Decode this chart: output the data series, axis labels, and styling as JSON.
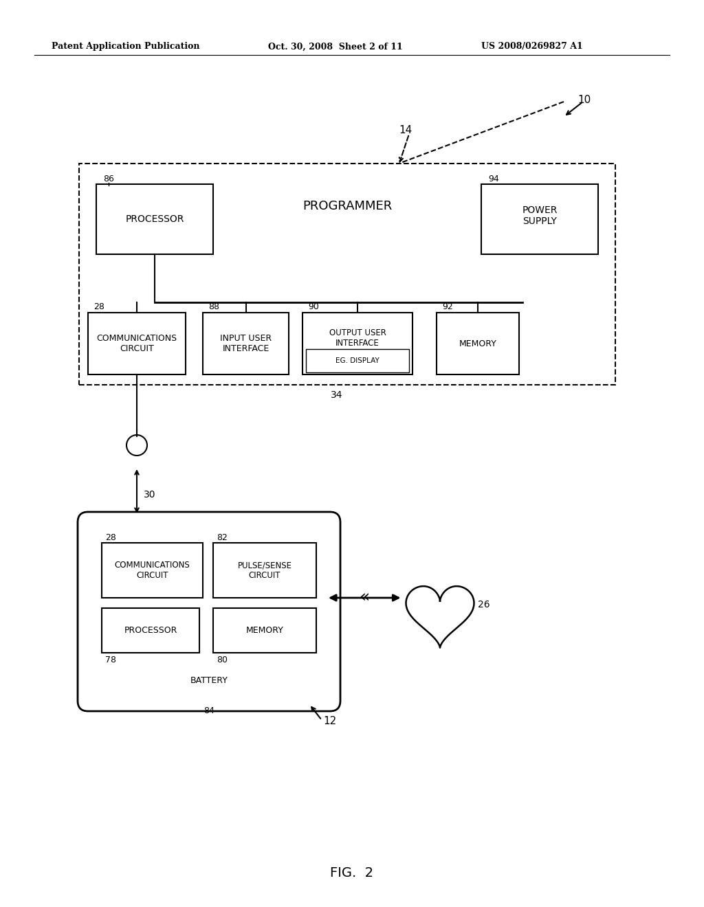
{
  "header_left": "Patent Application Publication",
  "header_mid": "Oct. 30, 2008  Sheet 2 of 11",
  "header_right": "US 2008/0269827 A1",
  "fig_label": "FIG.  2",
  "bg_color": "#ffffff",
  "line_color": "#000000"
}
